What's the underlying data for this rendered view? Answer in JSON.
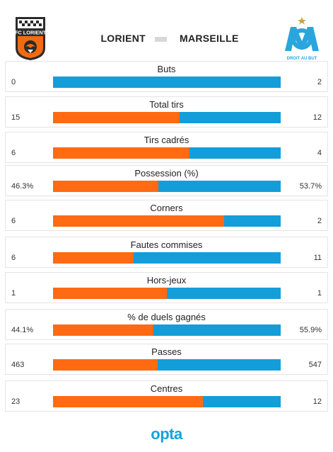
{
  "teams": {
    "home": "LORIENT",
    "away": "MARSEILLE",
    "home_logo_text": "FC LORIENT",
    "away_logo_text": "DROIT AU BUT"
  },
  "colors": {
    "home": "#ff6a12",
    "away": "#139ed9"
  },
  "footer": {
    "brand": "opta"
  },
  "chart_data": {
    "type": "bar",
    "orientation": "horizontal-stacked",
    "categories": [
      "Buts",
      "Total tirs",
      "Tirs cadrés",
      "Possession (%)",
      "Corners",
      "Fautes commises",
      "Hors-jeux",
      "% de duels gagnés",
      "Passes",
      "Centres"
    ],
    "series": [
      {
        "name": "LORIENT",
        "values": [
          0,
          15,
          6,
          46.3,
          6,
          6,
          1,
          44.1,
          463,
          23
        ]
      },
      {
        "name": "MARSEILLE",
        "values": [
          2,
          12,
          4,
          53.7,
          2,
          11,
          1,
          55.9,
          547,
          12
        ]
      }
    ],
    "display": {
      "home": [
        "0",
        "15",
        "6",
        "46.3%",
        "6",
        "6",
        "1",
        "44.1%",
        "463",
        "23"
      ],
      "away": [
        "2",
        "12",
        "4",
        "53.7%",
        "2",
        "11",
        "1",
        "55.9%",
        "547",
        "12"
      ]
    }
  }
}
